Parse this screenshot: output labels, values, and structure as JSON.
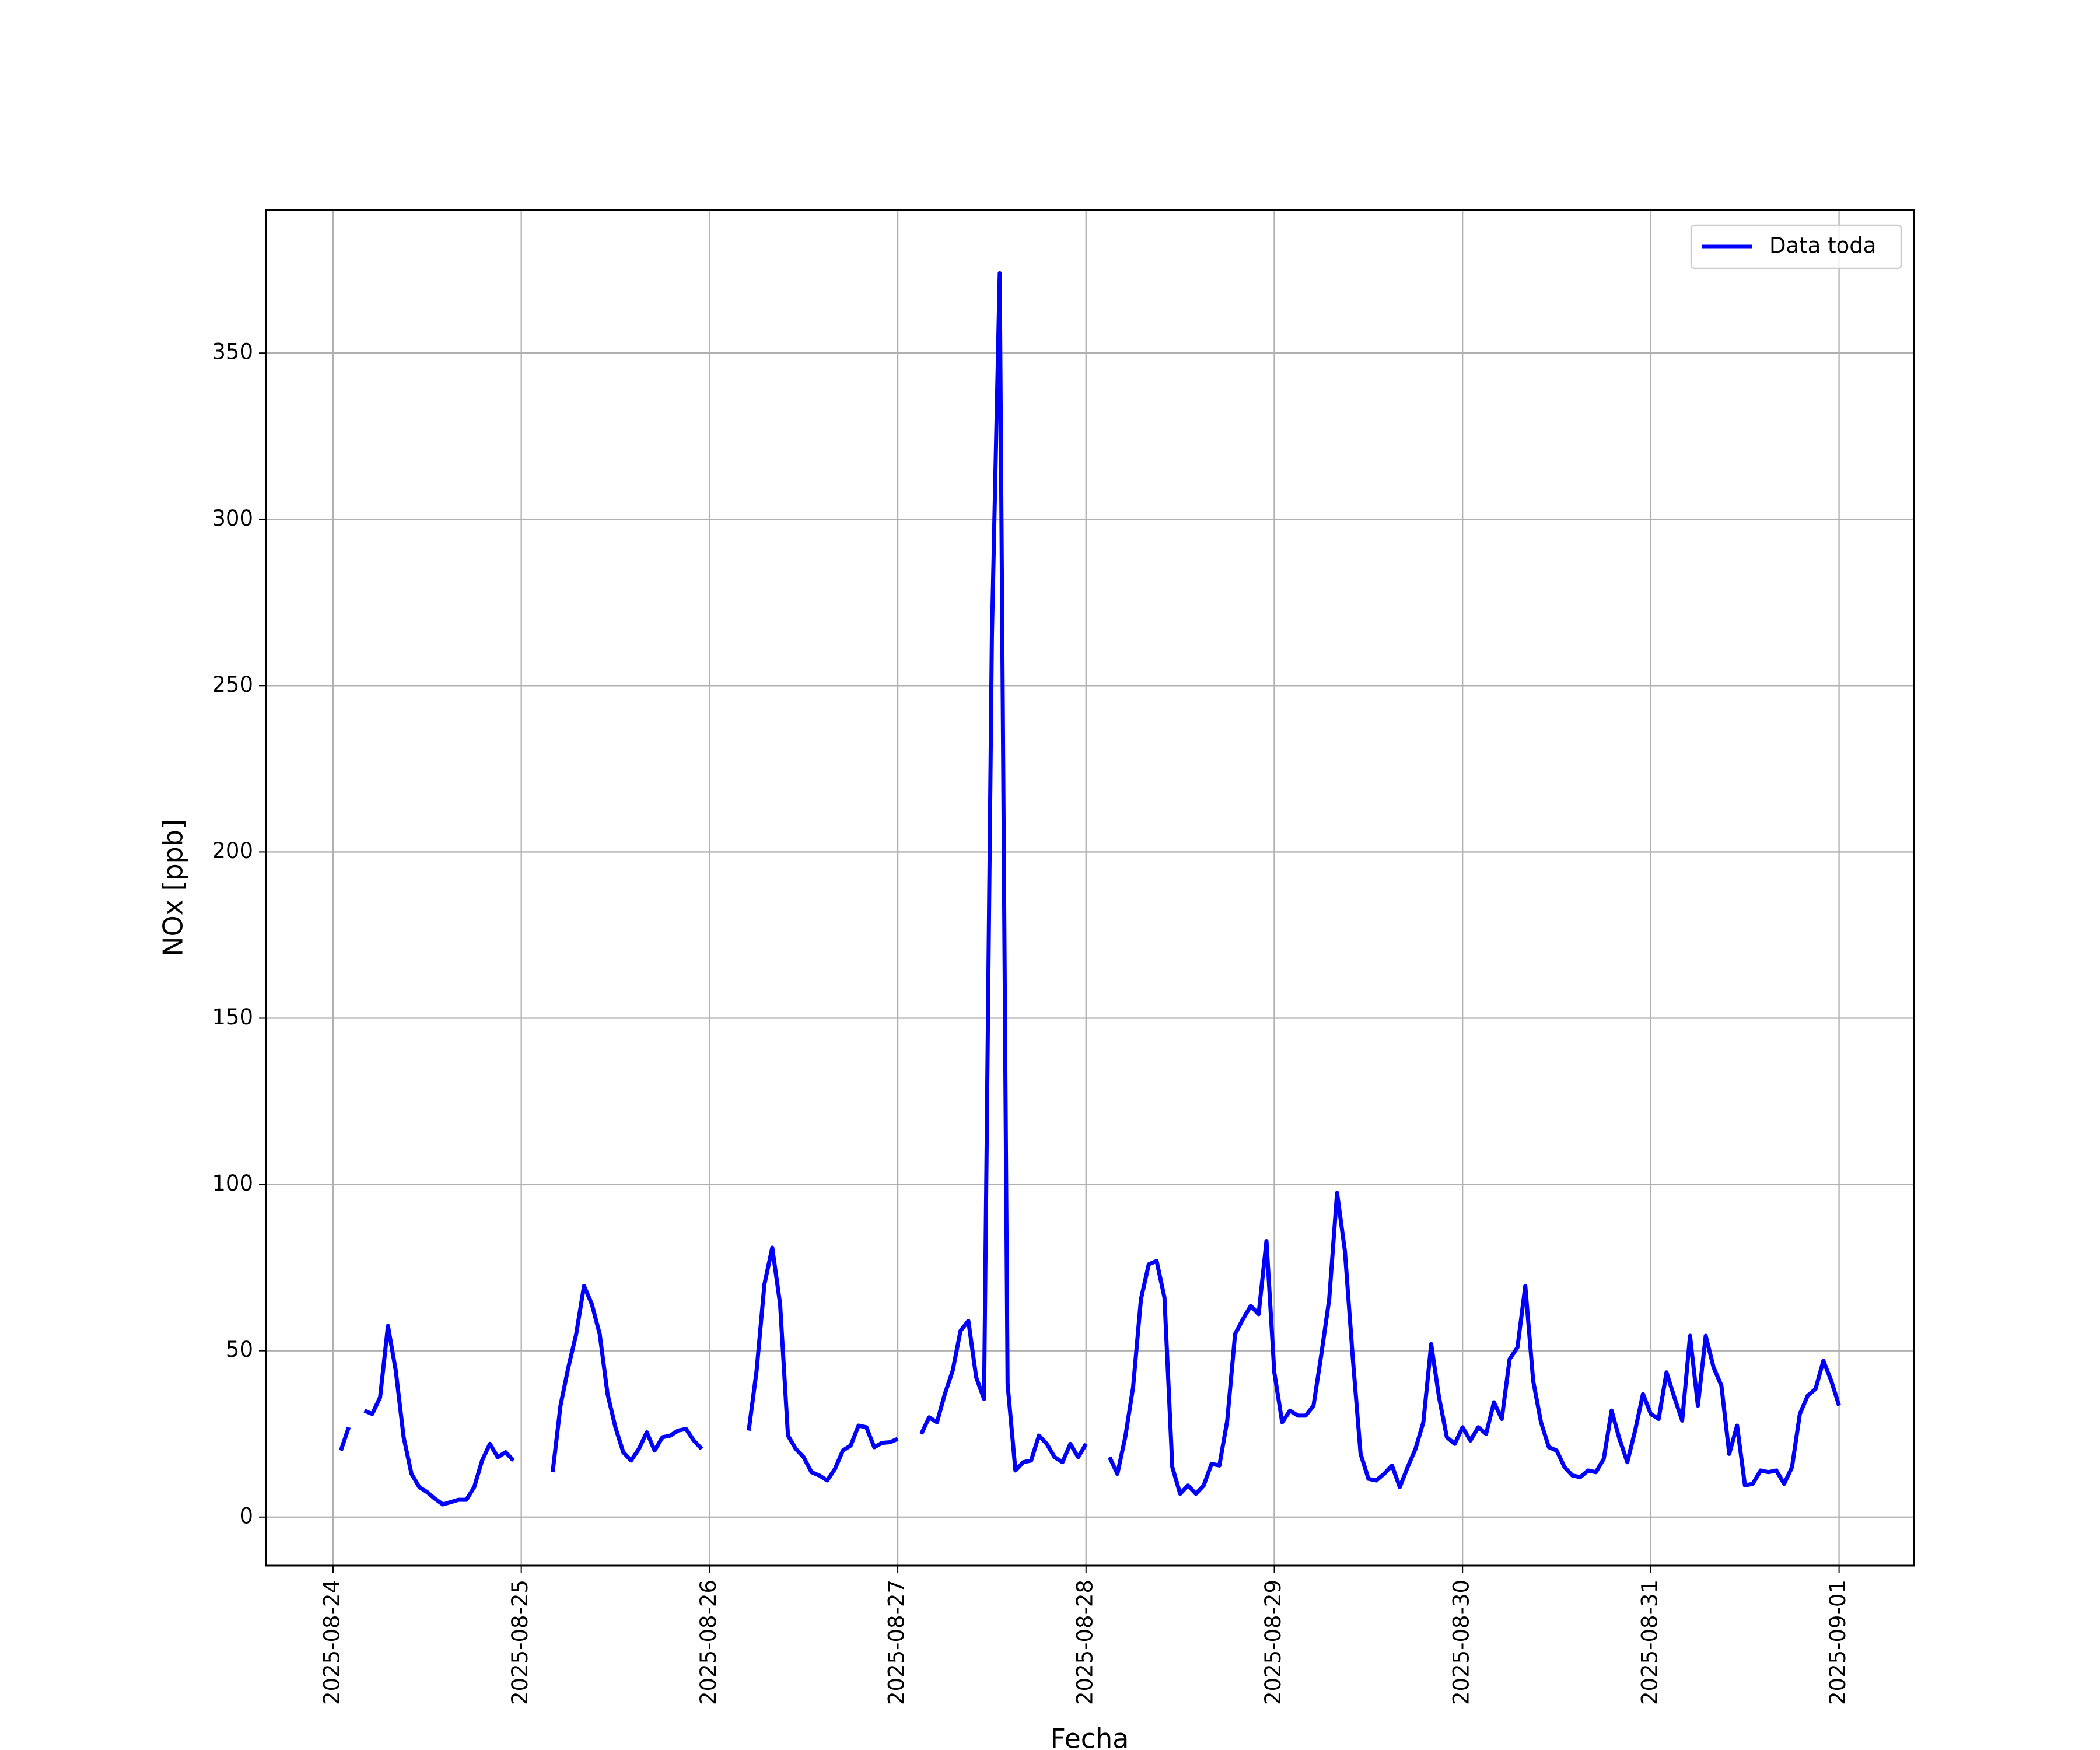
{
  "chart_data": {
    "type": "line",
    "xlabel": "Fecha",
    "ylabel": "NOx [ppb]",
    "x": [
      "2025-08-24 01:00",
      "2025-08-24 02:00",
      "2025-08-24 03:00",
      "2025-08-24 04:00",
      "2025-08-24 05:00",
      "2025-08-24 06:00",
      "2025-08-24 07:00",
      "2025-08-24 08:00",
      "2025-08-24 09:00",
      "2025-08-24 10:00",
      "2025-08-24 11:00",
      "2025-08-24 12:00",
      "2025-08-24 13:00",
      "2025-08-24 14:00",
      "2025-08-24 15:00",
      "2025-08-24 16:00",
      "2025-08-24 17:00",
      "2025-08-24 18:00",
      "2025-08-24 19:00",
      "2025-08-24 20:00",
      "2025-08-24 21:00",
      "2025-08-24 22:00",
      "2025-08-24 23:00",
      "2025-08-25 00:00",
      "2025-08-25 01:00",
      "2025-08-25 02:00",
      "2025-08-25 03:00",
      "2025-08-25 04:00",
      "2025-08-25 05:00",
      "2025-08-25 06:00",
      "2025-08-25 07:00",
      "2025-08-25 08:00",
      "2025-08-25 09:00",
      "2025-08-25 10:00",
      "2025-08-25 11:00",
      "2025-08-25 12:00",
      "2025-08-25 13:00",
      "2025-08-25 14:00",
      "2025-08-25 15:00",
      "2025-08-25 16:00",
      "2025-08-25 17:00",
      "2025-08-25 18:00",
      "2025-08-25 19:00",
      "2025-08-25 20:00",
      "2025-08-25 21:00",
      "2025-08-25 22:00",
      "2025-08-25 23:00",
      "2025-08-26 00:00",
      "2025-08-26 01:00",
      "2025-08-26 02:00",
      "2025-08-26 03:00",
      "2025-08-26 04:00",
      "2025-08-26 05:00",
      "2025-08-26 06:00",
      "2025-08-26 07:00",
      "2025-08-26 08:00",
      "2025-08-26 09:00",
      "2025-08-26 10:00",
      "2025-08-26 11:00",
      "2025-08-26 12:00",
      "2025-08-26 13:00",
      "2025-08-26 14:00",
      "2025-08-26 15:00",
      "2025-08-26 16:00",
      "2025-08-26 17:00",
      "2025-08-26 18:00",
      "2025-08-26 19:00",
      "2025-08-26 20:00",
      "2025-08-26 21:00",
      "2025-08-26 22:00",
      "2025-08-26 23:00",
      "2025-08-27 00:00",
      "2025-08-27 01:00",
      "2025-08-27 02:00",
      "2025-08-27 03:00",
      "2025-08-27 04:00",
      "2025-08-27 05:00",
      "2025-08-27 06:00",
      "2025-08-27 07:00",
      "2025-08-27 08:00",
      "2025-08-27 09:00",
      "2025-08-27 10:00",
      "2025-08-27 11:00",
      "2025-08-27 12:00",
      "2025-08-27 13:00",
      "2025-08-27 14:00",
      "2025-08-27 15:00",
      "2025-08-27 16:00",
      "2025-08-27 17:00",
      "2025-08-27 18:00",
      "2025-08-27 19:00",
      "2025-08-27 20:00",
      "2025-08-27 21:00",
      "2025-08-27 22:00",
      "2025-08-27 23:00",
      "2025-08-28 00:00",
      "2025-08-28 01:00",
      "2025-08-28 02:00",
      "2025-08-28 03:00",
      "2025-08-28 04:00",
      "2025-08-28 05:00",
      "2025-08-28 06:00",
      "2025-08-28 07:00",
      "2025-08-28 08:00",
      "2025-08-28 09:00",
      "2025-08-28 10:00",
      "2025-08-28 11:00",
      "2025-08-28 12:00",
      "2025-08-28 13:00",
      "2025-08-28 14:00",
      "2025-08-28 15:00",
      "2025-08-28 16:00",
      "2025-08-28 17:00",
      "2025-08-28 18:00",
      "2025-08-28 19:00",
      "2025-08-28 20:00",
      "2025-08-28 21:00",
      "2025-08-28 22:00",
      "2025-08-28 23:00",
      "2025-08-29 00:00",
      "2025-08-29 01:00",
      "2025-08-29 02:00",
      "2025-08-29 03:00",
      "2025-08-29 04:00",
      "2025-08-29 05:00",
      "2025-08-29 06:00",
      "2025-08-29 07:00",
      "2025-08-29 08:00",
      "2025-08-29 09:00",
      "2025-08-29 10:00",
      "2025-08-29 11:00",
      "2025-08-29 12:00",
      "2025-08-29 13:00",
      "2025-08-29 14:00",
      "2025-08-29 15:00",
      "2025-08-29 16:00",
      "2025-08-29 17:00",
      "2025-08-29 18:00",
      "2025-08-29 19:00",
      "2025-08-29 20:00",
      "2025-08-29 21:00",
      "2025-08-29 22:00",
      "2025-08-29 23:00",
      "2025-08-30 00:00",
      "2025-08-30 01:00",
      "2025-08-30 02:00",
      "2025-08-30 03:00",
      "2025-08-30 04:00",
      "2025-08-30 05:00",
      "2025-08-30 06:00",
      "2025-08-30 07:00",
      "2025-08-30 08:00",
      "2025-08-30 09:00",
      "2025-08-30 10:00",
      "2025-08-30 11:00",
      "2025-08-30 12:00",
      "2025-08-30 13:00",
      "2025-08-30 14:00",
      "2025-08-30 15:00",
      "2025-08-30 16:00",
      "2025-08-30 17:00",
      "2025-08-30 18:00",
      "2025-08-30 19:00",
      "2025-08-30 20:00",
      "2025-08-30 21:00",
      "2025-08-30 22:00",
      "2025-08-30 23:00",
      "2025-08-31 00:00",
      "2025-08-31 01:00",
      "2025-08-31 02:00",
      "2025-08-31 03:00",
      "2025-08-31 04:00",
      "2025-08-31 05:00",
      "2025-08-31 06:00",
      "2025-08-31 07:00",
      "2025-08-31 08:00",
      "2025-08-31 09:00",
      "2025-08-31 10:00",
      "2025-08-31 11:00",
      "2025-08-31 12:00",
      "2025-08-31 13:00",
      "2025-08-31 14:00",
      "2025-08-31 15:00",
      "2025-08-31 16:00",
      "2025-08-31 17:00",
      "2025-08-31 18:00",
      "2025-08-31 19:00",
      "2025-08-31 20:00",
      "2025-08-31 21:00",
      "2025-08-31 22:00",
      "2025-08-31 23:00",
      "2025-09-01 00:00"
    ],
    "series": [
      {
        "name": "Data toda",
        "color": "#0000ff",
        "values": [
          20,
          27,
          null,
          32,
          31,
          36,
          57.5,
          44,
          24,
          13,
          9,
          7.5,
          5.5,
          3.8,
          4.5,
          5.2,
          5.2,
          9,
          17,
          22,
          18,
          19.5,
          17,
          null,
          null,
          null,
          null,
          13.5,
          33.5,
          45,
          55,
          69.5,
          64,
          55,
          37,
          27,
          19.5,
          17,
          20.5,
          25.5,
          20,
          24,
          24.5,
          26,
          26.5,
          23,
          20.5,
          null,
          null,
          null,
          null,
          null,
          26,
          44,
          70,
          81,
          64,
          24.5,
          20.5,
          18,
          13.5,
          12.5,
          11,
          14.5,
          20,
          21.5,
          27.5,
          27,
          21,
          22.3,
          22.5,
          23.5,
          null,
          null,
          25,
          30,
          28.5,
          37,
          44,
          56,
          59,
          42,
          35.5,
          265,
          374,
          40,
          14,
          16.5,
          17,
          24.5,
          22,
          18,
          16.5,
          22,
          18,
          22,
          null,
          null,
          18,
          13,
          24,
          39,
          65.5,
          76,
          77,
          66,
          15,
          7,
          9.5,
          7,
          9.5,
          16,
          15.5,
          29,
          55,
          59.5,
          63.5,
          61,
          83,
          43.5,
          28.5,
          32,
          30.5,
          30.5,
          33.5,
          49,
          65.5,
          97.5,
          80,
          48,
          19,
          11.5,
          11,
          13,
          15.5,
          9,
          15,
          20.5,
          28.5,
          52,
          36,
          24,
          22,
          27,
          23,
          27,
          25,
          34.5,
          29.5,
          47.5,
          51,
          69.5,
          41,
          28.5,
          21,
          20,
          15,
          12.5,
          12,
          14,
          13.5,
          17.5,
          32,
          23.5,
          16.5,
          26,
          37,
          31,
          29.5,
          43.5,
          36,
          29,
          54.5,
          33.5,
          54.5,
          45,
          39.5,
          19,
          27.5,
          9.5,
          10,
          14,
          13.5,
          14,
          10,
          15,
          31,
          36.5,
          38.5,
          47,
          41,
          33.5
        ]
      }
    ],
    "xlim": [
      "2025-08-23 15:27",
      "2025-09-01 09:33"
    ],
    "xticks": [
      "2025-08-24",
      "2025-08-25",
      "2025-08-26",
      "2025-08-27",
      "2025-08-28",
      "2025-08-29",
      "2025-08-30",
      "2025-08-31",
      "2025-09-01"
    ],
    "ylim": [
      -14.6,
      393
    ],
    "yticks": [
      0,
      50,
      100,
      150,
      200,
      250,
      300,
      350
    ],
    "grid": true,
    "legend": "upper right"
  }
}
